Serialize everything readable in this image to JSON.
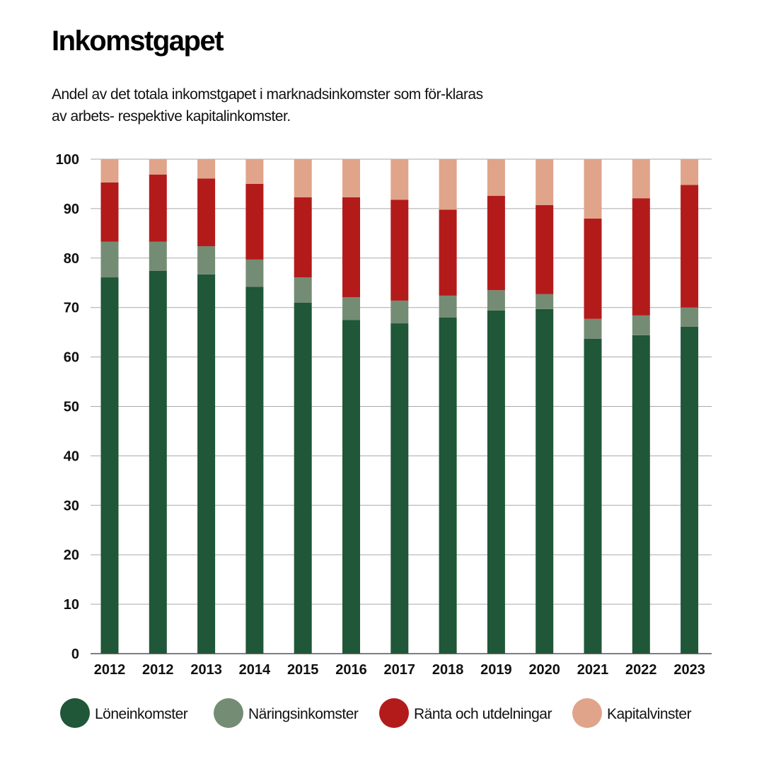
{
  "chart_data": {
    "type": "bar",
    "stacked": true,
    "title": "Inkomstgapet",
    "subtitle": "Andel av det totala inkomstgapet i marknadsinkomster som för-klaras av arbets- respektive kapitalinkomster.",
    "categories": [
      "2012",
      "2012",
      "2013",
      "2014",
      "2015",
      "2016",
      "2017",
      "2018",
      "2019",
      "2020",
      "2021",
      "2022",
      "2023"
    ],
    "series": [
      {
        "name": "Löneinkomster",
        "color": "#1f5738",
        "values": [
          76.1,
          77.4,
          76.7,
          74.2,
          71.0,
          67.5,
          66.8,
          68.0,
          69.4,
          69.7,
          63.7,
          64.4,
          66.1
        ]
      },
      {
        "name": "Näringsinkomster",
        "color": "#748c74",
        "values": [
          7.2,
          5.9,
          5.7,
          5.5,
          5.1,
          4.6,
          4.6,
          4.4,
          4.1,
          3.0,
          4.0,
          4.0,
          3.9
        ]
      },
      {
        "name": "Ränta och utdelningar",
        "color": "#b31b1b",
        "values": [
          12.0,
          13.6,
          13.7,
          15.3,
          16.2,
          20.2,
          20.4,
          17.4,
          19.1,
          18.0,
          20.3,
          23.7,
          24.8
        ]
      },
      {
        "name": "Kapitalvinster",
        "color": "#e0a48a",
        "values": [
          4.7,
          3.1,
          3.9,
          5.0,
          7.7,
          7.7,
          8.2,
          10.2,
          7.4,
          9.3,
          12.0,
          7.9,
          5.2
        ]
      }
    ],
    "yticks": [
      0,
      10,
      20,
      30,
      40,
      50,
      60,
      70,
      80,
      90,
      100
    ],
    "ylim": [
      0,
      100
    ],
    "grid": true,
    "legend_position": "bottom"
  }
}
